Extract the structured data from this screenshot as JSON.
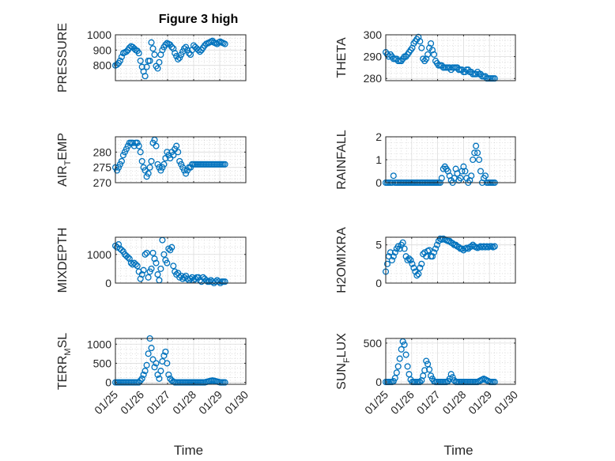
{
  "figure": {
    "title": "Figure 3 high",
    "marker_color": "#0072bd"
  },
  "chart_data": [
    {
      "type": "scatter",
      "id": "pressure",
      "ylabel": "PRESSURE",
      "xlabel": "",
      "xlim": [
        0,
        5
      ],
      "ylim": [
        700,
        1000
      ],
      "yticks": [
        800,
        900,
        1000
      ],
      "ytick_labels": [
        "800",
        "900",
        "1000"
      ],
      "xticks": [
        0,
        1,
        2,
        3,
        4,
        5
      ],
      "xtick_labels": [],
      "grid": true,
      "x": [
        0.0,
        0.06,
        0.12,
        0.18,
        0.24,
        0.3,
        0.36,
        0.42,
        0.48,
        0.54,
        0.6,
        0.66,
        0.72,
        0.78,
        0.84,
        0.9,
        0.96,
        1.02,
        1.08,
        1.14,
        1.2,
        1.26,
        1.32,
        1.38,
        1.44,
        1.5,
        1.56,
        1.62,
        1.68,
        1.74,
        1.8,
        1.86,
        1.92,
        1.98,
        2.04,
        2.1,
        2.16,
        2.22,
        2.28,
        2.34,
        2.4,
        2.46,
        2.52,
        2.58,
        2.64,
        2.7,
        2.76,
        2.82,
        2.88,
        2.94,
        3.0,
        3.06,
        3.12,
        3.18,
        3.24,
        3.3,
        3.36,
        3.42,
        3.48,
        3.54,
        3.6,
        3.66,
        3.72,
        3.78,
        3.84,
        3.9,
        3.96,
        4.02,
        4.08,
        4.14,
        4.2
      ],
      "y": [
        800,
        805,
        815,
        830,
        855,
        880,
        885,
        890,
        900,
        915,
        925,
        920,
        910,
        900,
        895,
        880,
        830,
        790,
        760,
        730,
        790,
        830,
        830,
        950,
        910,
        870,
        795,
        780,
        820,
        870,
        900,
        920,
        935,
        945,
        940,
        935,
        920,
        910,
        880,
        860,
        840,
        850,
        870,
        890,
        910,
        920,
        900,
        880,
        870,
        900,
        930,
        920,
        910,
        900,
        890,
        900,
        915,
        930,
        940,
        945,
        950,
        955,
        960,
        950,
        945,
        940,
        950,
        955,
        950,
        945,
        940
      ]
    },
    {
      "type": "scatter",
      "id": "theta",
      "ylabel": "THETA",
      "xlabel": "",
      "xlim": [
        0,
        5
      ],
      "ylim": [
        279,
        300
      ],
      "yticks": [
        280,
        290,
        300
      ],
      "ytick_labels": [
        "280",
        "290",
        "300"
      ],
      "xticks": [
        0,
        1,
        2,
        3,
        4,
        5
      ],
      "xtick_labels": [],
      "grid": true,
      "x": [
        0.0,
        0.06,
        0.12,
        0.18,
        0.24,
        0.3,
        0.36,
        0.42,
        0.48,
        0.54,
        0.6,
        0.66,
        0.72,
        0.78,
        0.84,
        0.9,
        0.96,
        1.02,
        1.08,
        1.14,
        1.2,
        1.26,
        1.32,
        1.38,
        1.44,
        1.5,
        1.56,
        1.62,
        1.68,
        1.74,
        1.8,
        1.86,
        1.92,
        1.98,
        2.04,
        2.1,
        2.16,
        2.22,
        2.28,
        2.34,
        2.4,
        2.46,
        2.52,
        2.58,
        2.64,
        2.7,
        2.76,
        2.82,
        2.88,
        2.94,
        3.0,
        3.06,
        3.12,
        3.18,
        3.24,
        3.3,
        3.36,
        3.42,
        3.48,
        3.54,
        3.6,
        3.66,
        3.72,
        3.78,
        3.84,
        3.9,
        3.96,
        4.02,
        4.08,
        4.14,
        4.2
      ],
      "y": [
        292,
        291,
        290,
        291,
        290,
        289,
        289,
        289,
        288,
        288,
        288,
        289,
        290,
        290,
        291,
        292,
        293,
        294,
        296,
        297,
        298,
        299,
        297,
        294,
        289,
        288,
        289,
        291,
        294,
        296,
        293,
        291,
        288,
        287,
        286,
        286,
        286,
        285,
        285,
        285,
        285,
        285,
        284,
        285,
        285,
        285,
        285,
        284,
        284,
        284,
        283,
        283,
        284,
        284,
        283,
        283,
        282,
        282,
        282,
        283,
        282,
        282,
        281,
        281,
        281,
        280,
        280,
        280,
        280,
        280,
        280
      ]
    },
    {
      "type": "scatter",
      "id": "air_temp",
      "ylabel": "AIR",
      "ylabel_sub": "T",
      "ylabel_after": "EMP",
      "xlabel": "",
      "xlim": [
        0,
        5
      ],
      "ylim": [
        270,
        285
      ],
      "yticks": [
        270,
        275,
        280
      ],
      "ytick_labels": [
        "270",
        "275",
        "280"
      ],
      "xticks": [
        0,
        1,
        2,
        3,
        4,
        5
      ],
      "xtick_labels": [],
      "grid": true,
      "x": [
        0.0,
        0.06,
        0.12,
        0.18,
        0.24,
        0.3,
        0.36,
        0.42,
        0.48,
        0.54,
        0.6,
        0.66,
        0.72,
        0.78,
        0.84,
        0.9,
        0.96,
        1.02,
        1.08,
        1.14,
        1.2,
        1.26,
        1.32,
        1.38,
        1.44,
        1.5,
        1.56,
        1.62,
        1.68,
        1.74,
        1.8,
        1.86,
        1.92,
        1.98,
        2.04,
        2.1,
        2.16,
        2.22,
        2.28,
        2.34,
        2.4,
        2.46,
        2.52,
        2.58,
        2.64,
        2.7,
        2.76,
        2.82,
        2.88,
        2.94,
        3.0,
        3.06,
        3.12,
        3.18,
        3.24,
        3.3,
        3.36,
        3.42,
        3.48,
        3.54,
        3.6,
        3.66,
        3.72,
        3.78,
        3.84,
        3.9,
        3.96,
        4.02,
        4.08,
        4.14,
        4.2
      ],
      "y": [
        275,
        274,
        275,
        276,
        277,
        279,
        280,
        281,
        282,
        283,
        283,
        283,
        282,
        283,
        283,
        282,
        280,
        277,
        275,
        274,
        272,
        273,
        275,
        277,
        283,
        284,
        282,
        276,
        275,
        274,
        275,
        276,
        278,
        280,
        279,
        278,
        280,
        279,
        281,
        282,
        280,
        277,
        276,
        275,
        274,
        273,
        274,
        275,
        275,
        276,
        276,
        276,
        276,
        276,
        276,
        276,
        276,
        276,
        276,
        276,
        276,
        276,
        276,
        276,
        276,
        276,
        276,
        276,
        276,
        276,
        276
      ]
    },
    {
      "type": "scatter",
      "id": "rainfall",
      "ylabel": "RAINFALL",
      "xlabel": "",
      "xlim": [
        0,
        5
      ],
      "ylim": [
        0,
        2
      ],
      "yticks": [
        0,
        1,
        2
      ],
      "ytick_labels": [
        "0",
        "1",
        "2"
      ],
      "xticks": [
        0,
        1,
        2,
        3,
        4,
        5
      ],
      "xtick_labels": [],
      "grid": true,
      "x": [
        0.0,
        0.06,
        0.12,
        0.18,
        0.24,
        0.3,
        0.36,
        0.42,
        0.48,
        0.54,
        0.6,
        0.66,
        0.72,
        0.78,
        0.84,
        0.9,
        0.96,
        1.02,
        1.08,
        1.14,
        1.2,
        1.26,
        1.32,
        1.38,
        1.44,
        1.5,
        1.56,
        1.62,
        1.68,
        1.74,
        1.8,
        1.86,
        1.92,
        1.98,
        2.04,
        2.1,
        2.16,
        2.22,
        2.28,
        2.34,
        2.4,
        2.46,
        2.52,
        2.58,
        2.64,
        2.7,
        2.76,
        2.82,
        2.88,
        2.94,
        3.0,
        3.06,
        3.12,
        3.18,
        3.24,
        3.3,
        3.36,
        3.42,
        3.48,
        3.54,
        3.6,
        3.66,
        3.72,
        3.78,
        3.84,
        3.9,
        3.96,
        4.02,
        4.08,
        4.14,
        4.2
      ],
      "y": [
        0,
        0,
        0,
        0,
        0,
        0.3,
        0,
        0,
        0,
        0,
        0,
        0,
        0,
        0,
        0,
        0,
        0,
        0,
        0,
        0,
        0,
        0,
        0,
        0,
        0,
        0,
        0,
        0,
        0,
        0,
        0,
        0,
        0,
        0,
        0,
        0,
        0.2,
        0.6,
        0.7,
        0.6,
        0.5,
        0.3,
        0.1,
        0,
        0.2,
        0.6,
        0.4,
        0.1,
        0.2,
        0.5,
        0.7,
        0.5,
        0.2,
        0,
        0.1,
        0.3,
        1.0,
        1.3,
        1.6,
        1.3,
        1.0,
        0.5,
        0,
        0.2,
        0.3,
        0,
        0,
        0,
        0,
        0,
        0
      ]
    },
    {
      "type": "scatter",
      "id": "mixdepth",
      "ylabel": "MIXDEPTH",
      "xlabel": "",
      "xlim": [
        0,
        5
      ],
      "ylim": [
        0,
        1600
      ],
      "yticks": [
        0,
        1000
      ],
      "ytick_labels": [
        "0",
        "1000"
      ],
      "xticks": [
        0,
        1,
        2,
        3,
        4,
        5
      ],
      "xtick_labels": [],
      "grid": true,
      "x": [
        0.0,
        0.06,
        0.12,
        0.18,
        0.24,
        0.3,
        0.36,
        0.42,
        0.48,
        0.54,
        0.6,
        0.66,
        0.72,
        0.78,
        0.84,
        0.9,
        0.96,
        1.02,
        1.08,
        1.14,
        1.2,
        1.26,
        1.32,
        1.38,
        1.44,
        1.5,
        1.56,
        1.62,
        1.68,
        1.74,
        1.8,
        1.86,
        1.92,
        1.98,
        2.04,
        2.1,
        2.16,
        2.22,
        2.28,
        2.34,
        2.4,
        2.46,
        2.52,
        2.58,
        2.64,
        2.7,
        2.76,
        2.82,
        2.88,
        2.94,
        3.0,
        3.06,
        3.12,
        3.18,
        3.24,
        3.3,
        3.36,
        3.42,
        3.48,
        3.54,
        3.6,
        3.66,
        3.72,
        3.78,
        3.84,
        3.9,
        3.96,
        4.02,
        4.08,
        4.14,
        4.2
      ],
      "y": [
        1300,
        1250,
        1350,
        1200,
        1150,
        1100,
        1000,
        950,
        900,
        850,
        700,
        650,
        700,
        650,
        600,
        400,
        150,
        300,
        450,
        1000,
        1050,
        200,
        400,
        500,
        1050,
        850,
        700,
        300,
        100,
        500,
        1500,
        1000,
        800,
        700,
        1200,
        1150,
        1250,
        600,
        400,
        300,
        350,
        200,
        250,
        150,
        200,
        250,
        150,
        100,
        150,
        200,
        100,
        150,
        200,
        200,
        100,
        50,
        200,
        150,
        100,
        50,
        50,
        100,
        50,
        0,
        50,
        100,
        50,
        0,
        50,
        50,
        50
      ]
    },
    {
      "type": "scatter",
      "id": "h2omixra",
      "ylabel": "H2OMIXRA",
      "xlabel": "",
      "xlim": [
        0,
        5
      ],
      "ylim": [
        0,
        6
      ],
      "yticks": [
        0,
        5
      ],
      "ytick_labels": [
        "0",
        "5"
      ],
      "xticks": [
        0,
        1,
        2,
        3,
        4,
        5
      ],
      "xtick_labels": [],
      "grid": true,
      "x": [
        0.0,
        0.06,
        0.12,
        0.18,
        0.24,
        0.3,
        0.36,
        0.42,
        0.48,
        0.54,
        0.6,
        0.66,
        0.72,
        0.78,
        0.84,
        0.9,
        0.96,
        1.02,
        1.08,
        1.14,
        1.2,
        1.26,
        1.32,
        1.38,
        1.44,
        1.5,
        1.56,
        1.62,
        1.68,
        1.74,
        1.8,
        1.86,
        1.92,
        1.98,
        2.04,
        2.1,
        2.16,
        2.22,
        2.28,
        2.34,
        2.4,
        2.46,
        2.52,
        2.58,
        2.64,
        2.7,
        2.76,
        2.82,
        2.88,
        2.94,
        3.0,
        3.06,
        3.12,
        3.18,
        3.24,
        3.3,
        3.36,
        3.42,
        3.48,
        3.54,
        3.6,
        3.66,
        3.72,
        3.78,
        3.84,
        3.9,
        3.96,
        4.02,
        4.08,
        4.14,
        4.2
      ],
      "y": [
        1.5,
        2.5,
        3.5,
        4.0,
        3.0,
        3.5,
        4.0,
        4.5,
        4.8,
        4.5,
        5.0,
        5.3,
        4.5,
        3.5,
        3.0,
        3.2,
        3.0,
        2.5,
        2.0,
        1.5,
        1.0,
        1.2,
        2.0,
        2.5,
        3.8,
        4.0,
        3.5,
        4.2,
        4.3,
        3.5,
        3.5,
        4.0,
        4.5,
        5.0,
        5.5,
        5.8,
        5.7,
        5.8,
        5.7,
        5.6,
        5.5,
        5.5,
        5.3,
        5.2,
        5.0,
        5.0,
        4.8,
        4.7,
        4.5,
        4.5,
        4.3,
        4.5,
        4.6,
        4.5,
        4.7,
        4.8,
        5.0,
        4.8,
        4.7,
        4.6,
        4.7,
        4.8,
        4.7,
        4.8,
        4.7,
        4.8,
        4.7,
        4.8,
        4.8,
        4.7,
        4.8
      ]
    },
    {
      "type": "scatter",
      "id": "terr_msl",
      "ylabel": "TERR",
      "ylabel_sub": "M",
      "ylabel_after": "SL",
      "xlabel": "Time",
      "xlim": [
        0,
        5
      ],
      "ylim": [
        -50,
        1150
      ],
      "yticks": [
        0,
        500,
        1000
      ],
      "ytick_labels": [
        "0",
        "500",
        "1000"
      ],
      "xticks": [
        0,
        1,
        2,
        3,
        4,
        5
      ],
      "xtick_labels": [
        "01/25",
        "01/26",
        "01/27",
        "01/28",
        "01/29",
        "01/30"
      ],
      "grid": true,
      "x": [
        0.0,
        0.06,
        0.12,
        0.18,
        0.24,
        0.3,
        0.36,
        0.42,
        0.48,
        0.54,
        0.6,
        0.66,
        0.72,
        0.78,
        0.84,
        0.9,
        0.96,
        1.02,
        1.08,
        1.14,
        1.2,
        1.26,
        1.32,
        1.38,
        1.44,
        1.5,
        1.56,
        1.62,
        1.68,
        1.74,
        1.8,
        1.86,
        1.92,
        1.98,
        2.04,
        2.1,
        2.16,
        2.22,
        2.28,
        2.34,
        2.4,
        2.46,
        2.52,
        2.58,
        2.64,
        2.7,
        2.76,
        2.82,
        2.88,
        2.94,
        3.0,
        3.06,
        3.12,
        3.18,
        3.24,
        3.3,
        3.36,
        3.42,
        3.48,
        3.54,
        3.6,
        3.66,
        3.72,
        3.78,
        3.84,
        3.9,
        3.96,
        4.02,
        4.08,
        4.14,
        4.2
      ],
      "y": [
        0,
        0,
        0,
        0,
        0,
        0,
        0,
        0,
        0,
        0,
        0,
        0,
        0,
        0,
        0,
        0,
        50,
        100,
        200,
        300,
        450,
        750,
        1150,
        900,
        600,
        400,
        500,
        200,
        100,
        300,
        550,
        700,
        800,
        500,
        200,
        100,
        50,
        20,
        0,
        0,
        0,
        0,
        0,
        0,
        0,
        0,
        0,
        0,
        0,
        0,
        0,
        0,
        0,
        0,
        0,
        0,
        0,
        0,
        10,
        20,
        30,
        40,
        50,
        40,
        30,
        20,
        10,
        0,
        0,
        0,
        0
      ]
    },
    {
      "type": "scatter",
      "id": "sun_flux",
      "ylabel": "SUN",
      "ylabel_sub": "F",
      "ylabel_after": "LUX",
      "xlabel": "Time",
      "xlim": [
        0,
        5
      ],
      "ylim": [
        -30,
        560
      ],
      "yticks": [
        0,
        500
      ],
      "ytick_labels": [
        "0",
        "500"
      ],
      "xticks": [
        0,
        1,
        2,
        3,
        4,
        5
      ],
      "xtick_labels": [
        "01/25",
        "01/26",
        "01/27",
        "01/28",
        "01/29",
        "01/30"
      ],
      "grid": true,
      "x": [
        0.0,
        0.06,
        0.12,
        0.18,
        0.24,
        0.3,
        0.36,
        0.42,
        0.48,
        0.54,
        0.6,
        0.66,
        0.72,
        0.78,
        0.84,
        0.9,
        0.96,
        1.02,
        1.08,
        1.14,
        1.2,
        1.26,
        1.32,
        1.38,
        1.44,
        1.5,
        1.56,
        1.62,
        1.68,
        1.74,
        1.8,
        1.86,
        1.92,
        1.98,
        2.04,
        2.1,
        2.16,
        2.22,
        2.28,
        2.34,
        2.4,
        2.46,
        2.52,
        2.58,
        2.64,
        2.7,
        2.76,
        2.82,
        2.88,
        2.94,
        3.0,
        3.06,
        3.12,
        3.18,
        3.24,
        3.3,
        3.36,
        3.42,
        3.48,
        3.54,
        3.6,
        3.66,
        3.72,
        3.78,
        3.84,
        3.9,
        3.96,
        4.02,
        4.08,
        4.14,
        4.2
      ],
      "y": [
        0,
        0,
        0,
        0,
        0,
        10,
        50,
        120,
        200,
        300,
        420,
        520,
        480,
        350,
        200,
        100,
        30,
        0,
        0,
        0,
        0,
        0,
        0,
        20,
        80,
        150,
        270,
        230,
        160,
        80,
        40,
        10,
        0,
        0,
        0,
        0,
        0,
        0,
        0,
        0,
        10,
        40,
        100,
        60,
        20,
        0,
        0,
        0,
        0,
        0,
        0,
        0,
        0,
        0,
        0,
        0,
        0,
        0,
        0,
        0,
        10,
        20,
        30,
        40,
        30,
        20,
        10,
        0,
        0,
        0,
        0
      ]
    }
  ]
}
